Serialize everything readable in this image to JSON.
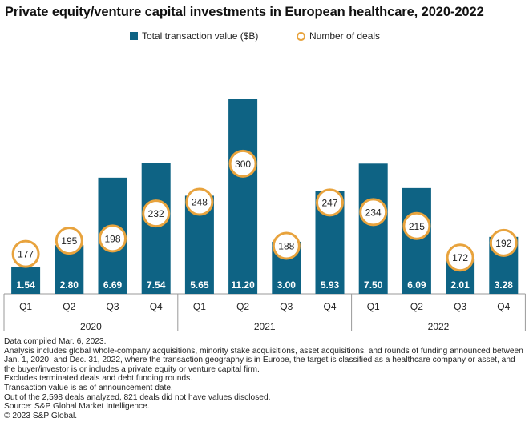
{
  "chart_data": {
    "type": "bar",
    "title": "Private equity/venture capital investments in European healthcare, 2020-2022",
    "legend": {
      "placement": "top-center",
      "bar_label": "Total transaction value ($B)",
      "deals_label": "Number of deals"
    },
    "quarters": [
      "Q1",
      "Q2",
      "Q3",
      "Q4",
      "Q1",
      "Q2",
      "Q3",
      "Q4",
      "Q1",
      "Q2",
      "Q3",
      "Q4"
    ],
    "years": [
      "2020",
      "2021",
      "2022"
    ],
    "series": [
      {
        "name": "Total transaction value ($B)",
        "values": [
          1.54,
          2.8,
          6.69,
          7.54,
          5.65,
          11.2,
          3.0,
          5.93,
          7.5,
          6.09,
          2.01,
          3.28
        ],
        "labels": [
          "1.54",
          "2.80",
          "6.69",
          "7.54",
          "5.65",
          "11.20",
          "3.00",
          "5.93",
          "7.50",
          "6.09",
          "2.01",
          "3.28"
        ]
      },
      {
        "name": "Number of deals",
        "values": [
          177,
          195,
          198,
          232,
          248,
          300,
          188,
          247,
          234,
          215,
          172,
          192
        ]
      }
    ],
    "colors": {
      "bar": "#0E6384",
      "deals_circle": "#E8A33D",
      "axis": "#999999"
    },
    "grid": false
  },
  "notes": [
    "Data compiled Mar. 6, 2023.",
    "Analysis includes global whole-company acquisitions, minority stake acquisitions, asset acquisitions, and rounds of funding announced between Jan. 1, 2020, and Dec. 31, 2022, where the transaction geography is in Europe, the target is classified as a healthcare company or asset, and the buyer/investor is or includes a private equity or venture capital firm.",
    "Excludes terminated deals and debt funding rounds.",
    "Transaction value is as of announcement date.",
    "Out of the 2,598 deals analyzed, 821 deals did not have values disclosed.",
    "Source: S&P Global Market Intelligence.",
    "© 2023 S&P Global."
  ]
}
